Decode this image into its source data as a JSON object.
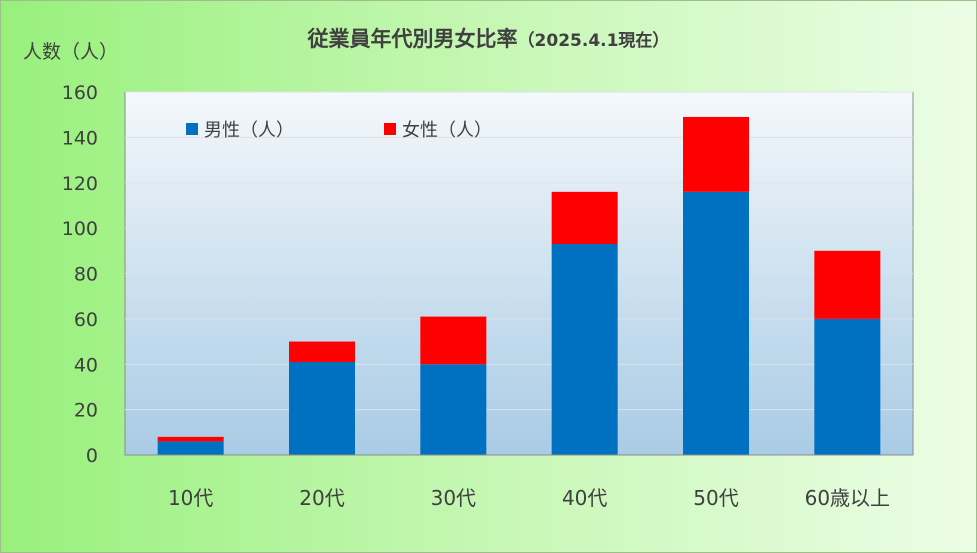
{
  "chart_data": {
    "type": "bar",
    "stacked": true,
    "title": "従業員年代別男女比率",
    "subtitle": "（2025.4.1現在）",
    "ylabel": "人数（人）",
    "xlabel": "",
    "categories": [
      "10代",
      "20代",
      "30代",
      "40代",
      "50代",
      "60歳以上"
    ],
    "series": [
      {
        "name": "男性（人）",
        "color": "#0070c0",
        "values": [
          6,
          41,
          40,
          93,
          116,
          60
        ]
      },
      {
        "name": "女性（人）",
        "color": "#ff0000",
        "values": [
          2,
          9,
          21,
          23,
          33,
          30
        ]
      }
    ],
    "ylim": [
      0,
      160
    ],
    "yticks": [
      0,
      20,
      40,
      60,
      80,
      100,
      120,
      140,
      160
    ],
    "grid": true,
    "legend_position": "top-left"
  }
}
